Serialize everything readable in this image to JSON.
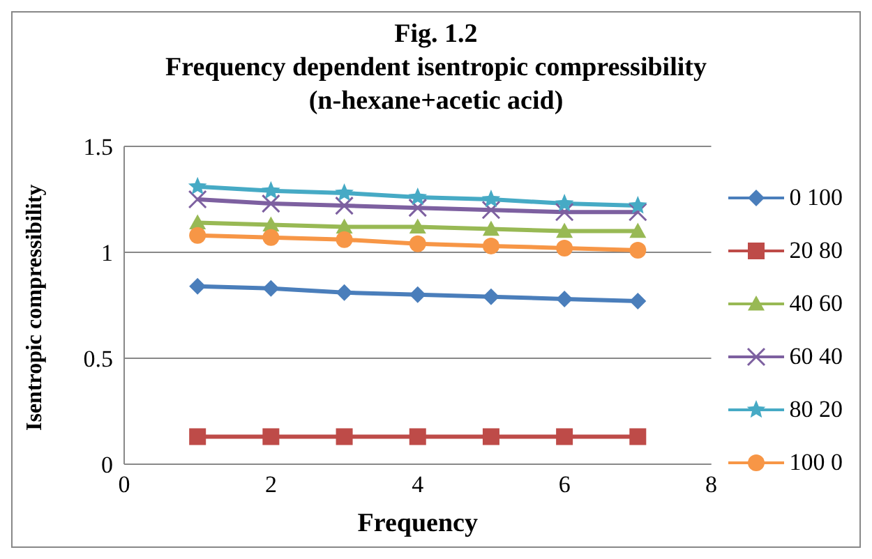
{
  "chart_data": {
    "type": "line",
    "title": "Fig. 1.2\nFrequency dependent isentropic compressibility\n(n-hexane+acetic acid)",
    "xlabel": "Frequency",
    "ylabel": "Isentropic compressibility",
    "x": [
      1,
      2,
      3,
      4,
      5,
      6,
      7
    ],
    "series": [
      {
        "name": "0 100",
        "color": "#4a7ebb",
        "marker": "diamond",
        "values": [
          0.84,
          0.83,
          0.81,
          0.8,
          0.79,
          0.78,
          0.77
        ]
      },
      {
        "name": "20 80",
        "color": "#be4b48",
        "marker": "square",
        "values": [
          0.13,
          0.13,
          0.13,
          0.13,
          0.13,
          0.13,
          0.13
        ]
      },
      {
        "name": "40 60",
        "color": "#98b954",
        "marker": "triangle",
        "values": [
          1.14,
          1.13,
          1.12,
          1.12,
          1.11,
          1.1,
          1.1
        ]
      },
      {
        "name": "60 40",
        "color": "#7d60a0",
        "marker": "cross",
        "values": [
          1.25,
          1.23,
          1.22,
          1.21,
          1.2,
          1.19,
          1.19
        ]
      },
      {
        "name": "80 20",
        "color": "#46aac5",
        "marker": "star",
        "values": [
          1.31,
          1.29,
          1.28,
          1.26,
          1.25,
          1.23,
          1.22
        ]
      },
      {
        "name": "100 0",
        "color": "#f79646",
        "marker": "circle",
        "values": [
          1.08,
          1.07,
          1.06,
          1.04,
          1.03,
          1.02,
          1.01
        ]
      }
    ],
    "xlim": [
      0,
      8
    ],
    "xticks": [
      0,
      2,
      4,
      6,
      8
    ],
    "ylim": [
      0,
      1.5
    ],
    "yticks": [
      0,
      0.5,
      1,
      1.5
    ],
    "grid": "y",
    "legend": "right",
    "line_style": "solid"
  }
}
